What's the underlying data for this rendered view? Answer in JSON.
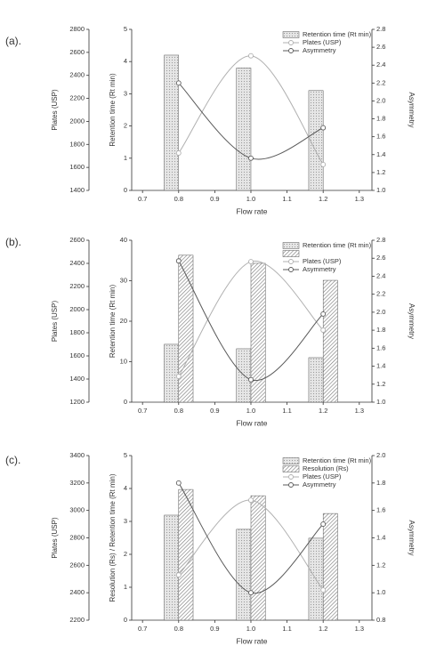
{
  "chart_data": [
    {
      "type": "combo",
      "label": "(a).",
      "xlabel": "Flow rate",
      "ylabel": "Retention time (Rt min)",
      "y2label": "Asymmetry",
      "y3label": "Plates (USP)",
      "xlim": [
        0.67,
        1.335
      ],
      "xticks": [
        0.7,
        0.8,
        0.9,
        {
          "value": 1,
          "label": "1.0"
        },
        1.1,
        1.2,
        1.3
      ],
      "ylim": [
        0,
        5
      ],
      "yticks": [
        0,
        1,
        2,
        3,
        4,
        5
      ],
      "y2lim": [
        1,
        2.8
      ],
      "y2ticks": [
        {
          "value": 1,
          "label": "1.0"
        },
        1.2,
        1.4,
        1.6,
        1.8,
        {
          "value": 2,
          "label": "2.0"
        },
        2.2,
        2.4,
        2.6,
        2.8
      ],
      "y3lim": [
        1400,
        2800
      ],
      "y3ticks": [
        1400,
        1600,
        1800,
        2000,
        2200,
        2400,
        2600,
        2800
      ],
      "series": [
        {
          "name": "Retention time (Rt min)",
          "kind": "bar",
          "pattern": "dots",
          "color": "#d4d4d4",
          "x": [
            0.78,
            0.98,
            1.18
          ],
          "values": [
            4.2,
            3.8,
            3.1
          ]
        },
        {
          "name": "Plates (USP)",
          "kind": "line",
          "axis": "y3",
          "color": "#b0b0b0",
          "x": [
            0.8,
            1.0,
            1.2
          ],
          "values": [
            1725,
            2570,
            1625
          ]
        },
        {
          "name": "Asymmetry",
          "kind": "line",
          "axis": "y2",
          "color": "#5a5a5a",
          "x": [
            0.8,
            1.0,
            1.2
          ],
          "values": [
            2.2,
            1.36,
            1.7
          ]
        }
      ]
    },
    {
      "type": "combo",
      "label": "(b).",
      "xlabel": "Flow rate",
      "ylabel": "Retention time (Rt min)",
      "y2label": "Asymmetry",
      "y3label": "Plates (USP)",
      "xlim": [
        0.67,
        1.335
      ],
      "xticks": [
        0.7,
        0.8,
        0.9,
        {
          "value": 1,
          "label": "1.0"
        },
        1.1,
        1.2,
        1.3
      ],
      "ylim": [
        0,
        40
      ],
      "yticks": [
        0,
        10,
        20,
        30,
        40
      ],
      "y2lim": [
        1,
        2.8
      ],
      "y2ticks": [
        {
          "value": 1,
          "label": "1.0"
        },
        1.2,
        1.4,
        1.6,
        1.8,
        {
          "value": 2,
          "label": "2.0"
        },
        2.2,
        2.4,
        2.6,
        2.8
      ],
      "y3lim": [
        1200,
        2600
      ],
      "y3ticks": [
        1200,
        1400,
        1600,
        1800,
        2000,
        2200,
        2400,
        2600
      ],
      "series": [
        {
          "name": "Retention time (Rt min)",
          "kind": "bar",
          "pattern": "dots",
          "color": "#d4d4d4",
          "x": [
            0.78,
            0.98,
            1.18
          ],
          "values": [
            14.3,
            13.2,
            11
          ]
        },
        {
          "kind": "bar",
          "pattern": "hatch",
          "color": "#8a8a8a",
          "x": [
            0.82,
            1.02,
            1.22
          ],
          "values": [
            36.3,
            34.3,
            30.1
          ]
        },
        {
          "name": "Plates (USP)",
          "kind": "line",
          "axis": "y3",
          "color": "#b0b0b0",
          "x": [
            0.8,
            1.0,
            1.2
          ],
          "values": [
            1423,
            2415,
            1823
          ]
        },
        {
          "name": "Asymmetry",
          "kind": "line",
          "axis": "y2",
          "color": "#5a5a5a",
          "x": [
            0.8,
            1.0,
            1.2
          ],
          "values": [
            2.57,
            1.25,
            1.98
          ]
        }
      ]
    },
    {
      "type": "combo",
      "label": "(c).",
      "xlabel": "Flow rate",
      "ylabel": "Resolution (Rs) / Retention time (Rt min)",
      "y2label": "Asymmetry",
      "y3label": "Plates (USP)",
      "xlim": [
        0.67,
        1.335
      ],
      "xticks": [
        0.7,
        0.8,
        0.9,
        {
          "value": 1,
          "label": "1.0"
        },
        1.1,
        1.2,
        1.3
      ],
      "ylim": [
        0,
        5
      ],
      "yticks": [
        0,
        1,
        2,
        3,
        4,
        5
      ],
      "y2lim": [
        0.8,
        2
      ],
      "y2ticks": [
        0.8,
        {
          "value": 1,
          "label": "1.0"
        },
        1.2,
        1.4,
        1.6,
        1.8,
        {
          "value": 2,
          "label": "2.0"
        }
      ],
      "y3lim": [
        2200,
        3400
      ],
      "y3ticks": [
        2200,
        2400,
        2600,
        2800,
        3000,
        3200,
        3400
      ],
      "series": [
        {
          "name": "Retention time (Rt min)",
          "kind": "bar",
          "pattern": "dots",
          "color": "#d4d4d4",
          "x": [
            0.78,
            0.98,
            1.18
          ],
          "values": [
            3.19,
            2.76,
            2.49
          ]
        },
        {
          "name": "Resolution (Rs)",
          "kind": "bar",
          "pattern": "hatch",
          "color": "#b8b8b8",
          "x": [
            0.82,
            1.02,
            1.22
          ],
          "values": [
            3.97,
            3.78,
            3.24
          ]
        },
        {
          "name": "Plates (USP)",
          "kind": "line",
          "axis": "y3",
          "color": "#b0b0b0",
          "x": [
            0.8,
            1.0,
            1.2
          ],
          "values": [
            2530,
            3075,
            2420
          ]
        },
        {
          "name": "Asymmetry",
          "kind": "line",
          "axis": "y2",
          "color": "#5a5a5a",
          "x": [
            0.8,
            1.0,
            1.2
          ],
          "values": [
            1.8,
            1.0,
            1.5
          ]
        }
      ]
    }
  ]
}
